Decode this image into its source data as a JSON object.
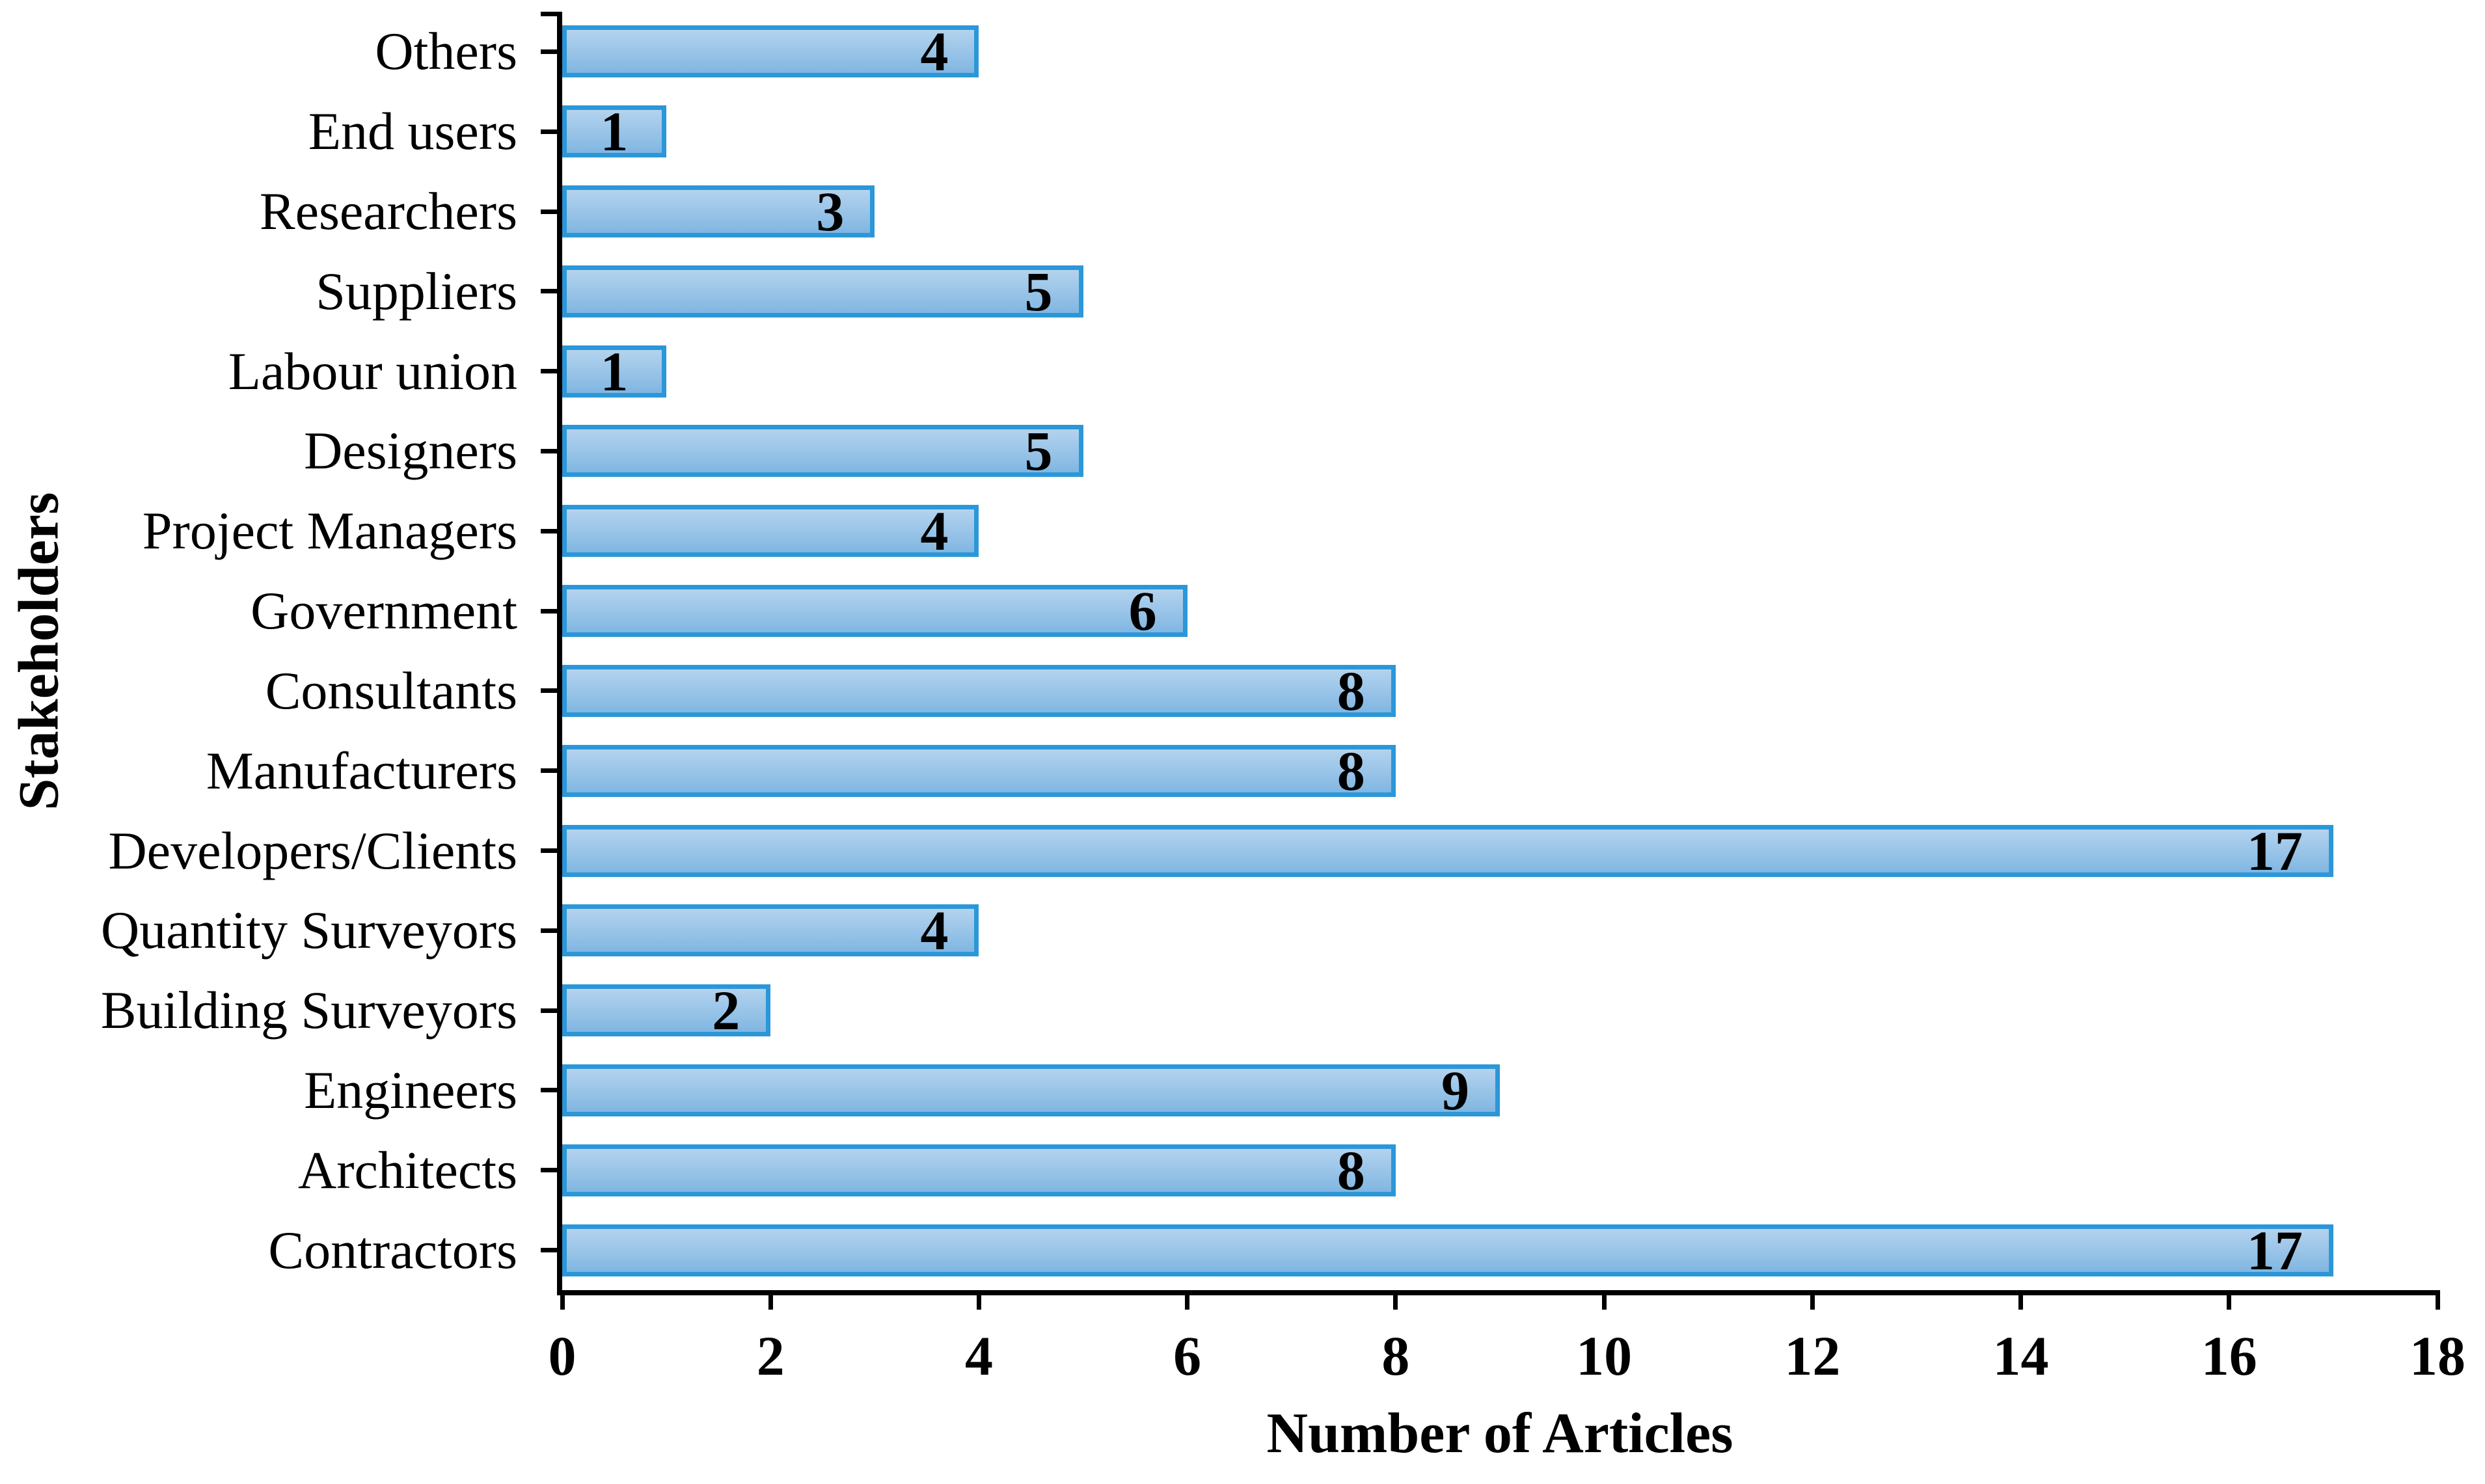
{
  "chart_data": {
    "type": "bar",
    "orientation": "horizontal",
    "title": "",
    "xlabel": "Number of Articles",
    "ylabel": "Stakeholders",
    "categories": [
      "Others",
      "End users",
      "Researchers",
      "Suppliers",
      "Labour union",
      "Designers",
      "Project Managers",
      "Government",
      "Consultants",
      "Manufacturers",
      "Developers/Clients",
      "Quantity Surveyors",
      "Building Surveyors",
      "Engineers",
      "Architects",
      "Contractors"
    ],
    "values": [
      4,
      1,
      3,
      5,
      1,
      5,
      4,
      6,
      8,
      8,
      17,
      4,
      2,
      9,
      8,
      17
    ],
    "xlim": [
      0,
      18
    ],
    "xticks": [
      0,
      2,
      4,
      6,
      8,
      10,
      12,
      14,
      16,
      18
    ],
    "grid": false,
    "legend": "none",
    "value_labels_shown": true,
    "colors": {
      "bar_fill_top": "#b4d3ee",
      "bar_fill_bottom": "#80b6e2",
      "bar_border": "#2b97d8",
      "axis": "#000000",
      "text": "#000000",
      "background": "#ffffff"
    }
  }
}
